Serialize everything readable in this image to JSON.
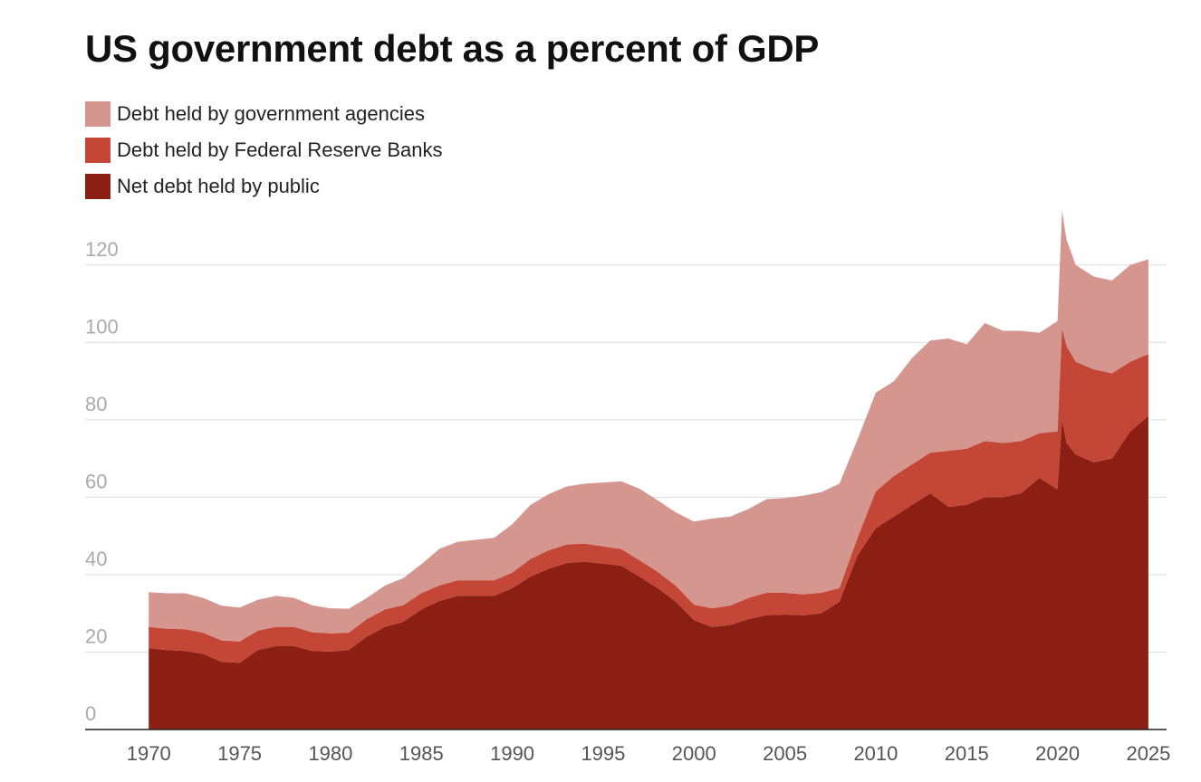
{
  "title": "US government debt as a percent of GDP",
  "chart_data": {
    "type": "area",
    "stacked": true,
    "title": "US government debt as a percent of GDP",
    "xlabel": "",
    "ylabel": "",
    "xlim": [
      1966.5,
      2026
    ],
    "ylim": [
      0,
      130
    ],
    "y_ticks": [
      0,
      20,
      40,
      60,
      80,
      100,
      120
    ],
    "x_ticks": [
      1970,
      1975,
      1980,
      1985,
      1990,
      1995,
      2000,
      2005,
      2010,
      2015,
      2020,
      2025
    ],
    "grid": true,
    "legend_position": "top-left",
    "x": [
      1970,
      1971,
      1972,
      1973,
      1974,
      1975,
      1976,
      1977,
      1978,
      1979,
      1980,
      1981,
      1982,
      1983,
      1984,
      1985,
      1986,
      1987,
      1988,
      1989,
      1990,
      1991,
      1992,
      1993,
      1994,
      1995,
      1996,
      1997,
      1998,
      1999,
      2000,
      2001,
      2002,
      2003,
      2004,
      2005,
      2006,
      2007,
      2008,
      2009,
      2010,
      2011,
      2012,
      2013,
      2014,
      2015,
      2016,
      2017,
      2018,
      2019,
      2020,
      2020.25,
      2020.5,
      2021,
      2022,
      2023,
      2024,
      2025
    ],
    "series": [
      {
        "name": "Net debt held by public",
        "color": "#8b1f14",
        "values": [
          21,
          20.5,
          20.3,
          19.5,
          17.5,
          17.2,
          20.5,
          21.5,
          21.5,
          20.3,
          20.1,
          20.5,
          24.0,
          26.5,
          27.8,
          31.0,
          33.2,
          34.5,
          34.5,
          34.5,
          36.5,
          39.5,
          41.5,
          43.0,
          43.3,
          42.8,
          42.3,
          39.5,
          36.5,
          33.0,
          28.2,
          26.5,
          27.0,
          28.5,
          29.5,
          29.7,
          29.5,
          30.0,
          33.0,
          45.0,
          52.0,
          55.0,
          58.0,
          61.0,
          57.5,
          58.0,
          60.0,
          60.0,
          61.0,
          65.0,
          62.0,
          80.0,
          74.0,
          71.0,
          69.0,
          70.0,
          77.0,
          81.0
        ]
      },
      {
        "name": "Debt held by Federal Reserve Banks",
        "color": "#c34637",
        "values": [
          5.5,
          5.5,
          5.6,
          5.5,
          5.5,
          5.5,
          5.0,
          5.0,
          5.0,
          4.8,
          4.7,
          4.5,
          4.5,
          4.5,
          4.3,
          4.2,
          4.0,
          4.0,
          4.0,
          4.0,
          4.0,
          4.5,
          4.8,
          4.8,
          4.7,
          4.5,
          4.3,
          4.2,
          4.2,
          4.1,
          4.0,
          4.8,
          5.0,
          5.5,
          5.8,
          5.6,
          5.4,
          5.3,
          3.5,
          4.5,
          9.5,
          10.5,
          10.5,
          10.5,
          14.5,
          14.5,
          14.5,
          14.0,
          13.5,
          11.5,
          15.0,
          23.5,
          25.0,
          24.0,
          24.0,
          22.0,
          18.0,
          16.0
        ]
      },
      {
        "name": "Debt held by government agencies",
        "color": "#d69690",
        "values": [
          9.0,
          9.2,
          9.3,
          9.0,
          9.0,
          8.8,
          8.0,
          8.0,
          7.5,
          7.0,
          6.5,
          6.2,
          5.5,
          6.2,
          7.0,
          7.5,
          9.5,
          10.0,
          10.5,
          11.0,
          12.5,
          14.0,
          14.5,
          15.0,
          15.5,
          16.5,
          17.5,
          18.5,
          18.5,
          19.0,
          21.5,
          23.2,
          23.0,
          23.0,
          24.2,
          24.5,
          25.5,
          26.0,
          27.0,
          25.5,
          25.5,
          24.5,
          27.5,
          29.0,
          29.0,
          27.0,
          30.5,
          29.0,
          28.5,
          26.0,
          28.5,
          30.5,
          27.5,
          25.0,
          24.0,
          24.0,
          25.0,
          24.5
        ]
      }
    ]
  },
  "legend": [
    {
      "label": "Debt held by government agencies",
      "color": "#d69690"
    },
    {
      "label": "Debt held by Federal Reserve Banks",
      "color": "#c34637"
    },
    {
      "label": "Net debt held by public",
      "color": "#8b1f14"
    }
  ]
}
